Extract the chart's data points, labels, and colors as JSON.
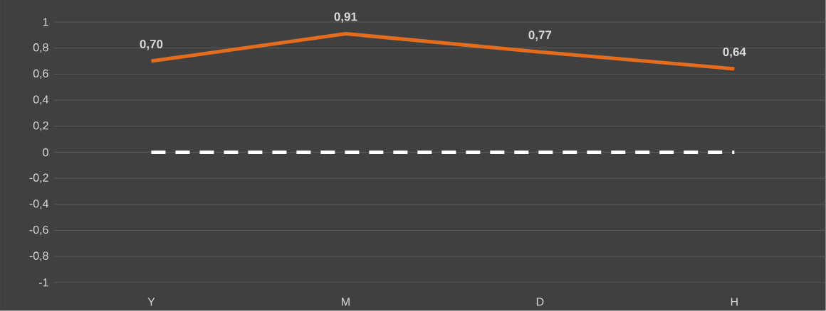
{
  "chart_data": {
    "type": "line",
    "categories": [
      "Y",
      "M",
      "D",
      "H"
    ],
    "series": [
      {
        "color": "#e46c1f",
        "values": [
          0.7,
          0.91,
          0.77,
          0.64
        ],
        "value_labels": [
          "0,70",
          "0,91",
          "0,77",
          "0,64"
        ]
      }
    ],
    "ylim": [
      -1,
      1
    ],
    "yticks": [
      -1,
      {
        "value": -0.8,
        "label": "-0,8"
      },
      {
        "value": -0.6,
        "label": "-0,6"
      },
      {
        "value": -0.4,
        "label": "-0,4"
      },
      {
        "value": -0.2,
        "label": "-0,2"
      },
      0,
      {
        "value": 0.2,
        "label": "0,2"
      },
      {
        "value": 0.4,
        "label": "0,4"
      },
      {
        "value": 0.6,
        "label": "0,6"
      },
      {
        "value": 0.8,
        "label": "0,8"
      },
      1
    ],
    "ref_lines": [
      {
        "axis": "y",
        "value": 0,
        "color": "#ffffff",
        "line_style": "dashed"
      }
    ],
    "grid": "y"
  }
}
